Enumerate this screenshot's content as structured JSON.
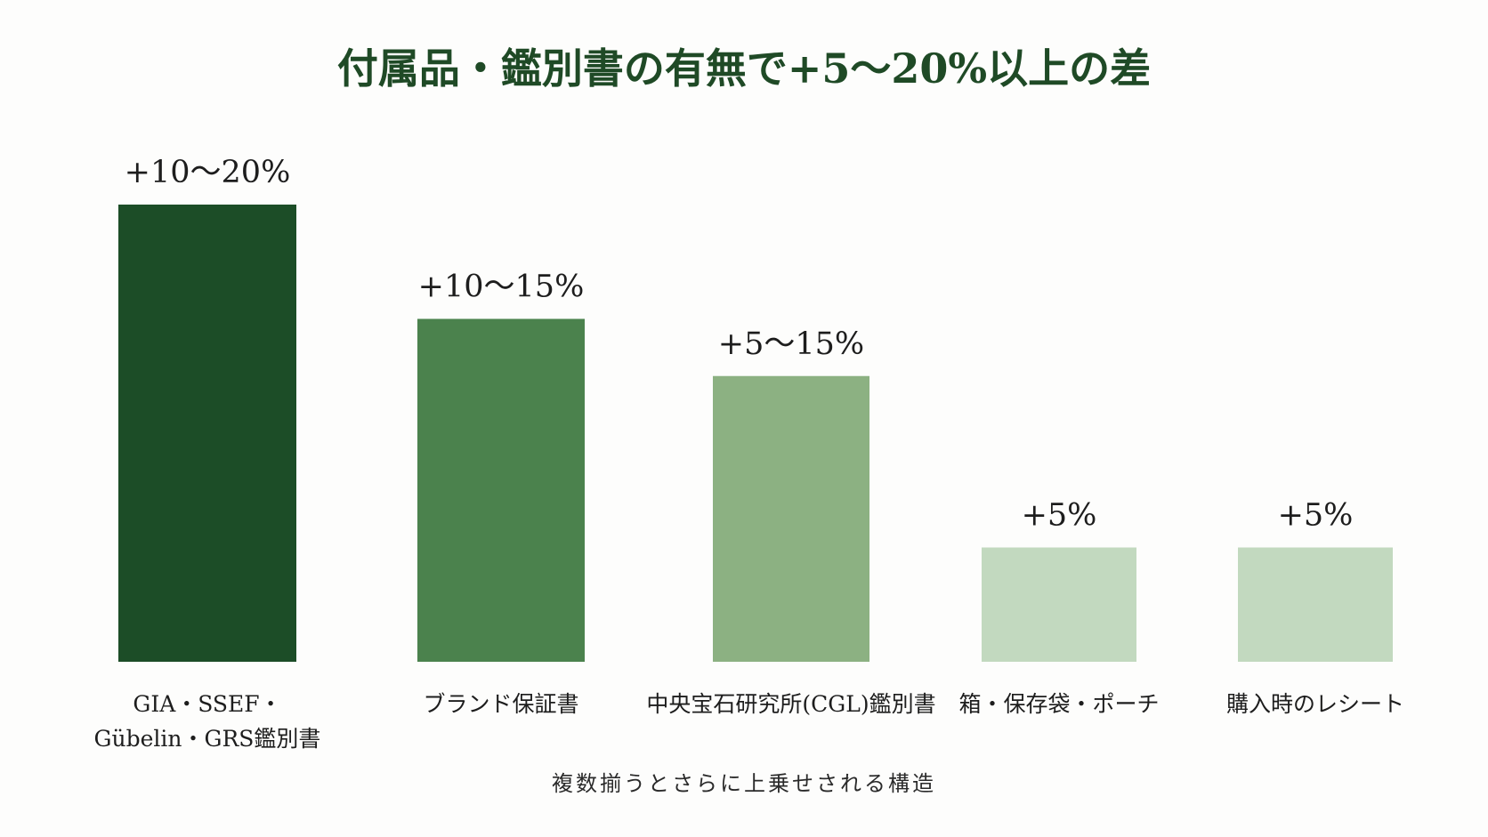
{
  "chart_data": {
    "type": "bar",
    "title": "付属品・鑑別書の有無で+5〜20%以上の差",
    "note": "複数揃うとさらに上乗せされる構造",
    "categories": [
      [
        "GIA・SSEF・",
        "Gübelin・GRS鑑別書"
      ],
      [
        "ブランド保証書"
      ],
      [
        "中央宝石研究所(CGL)鑑別書"
      ],
      [
        "箱・保存袋・ポーチ"
      ],
      [
        "購入時のレシート"
      ]
    ],
    "value_labels": [
      "+10〜20%",
      "+10〜15%",
      "+5〜15%",
      "+5%",
      "+5%"
    ],
    "values": [
      20,
      15,
      12.5,
      5,
      5
    ],
    "ylim": [
      0,
      20
    ],
    "colors": [
      "#1c4d27",
      "#4b824d",
      "#8cb182",
      "#c2d9bf",
      "#c2d9bf"
    ],
    "grid": false,
    "legend": "none"
  }
}
